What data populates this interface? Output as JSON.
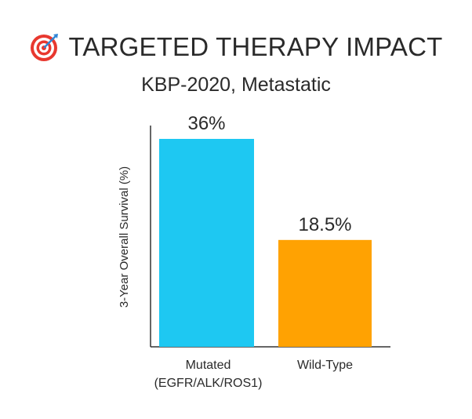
{
  "header": {
    "title": "TARGETED THERAPY IMPACT",
    "subtitle": "KBP-2020, Metastatic",
    "icon": "target-icon"
  },
  "colors": {
    "mutated": "#1ec8f2",
    "wild_type": "#ffa202",
    "axis": "#333333",
    "text": "#2a2a2a",
    "target_red": "#e8382f",
    "target_dart": "#2f86d6"
  },
  "chart_data": {
    "type": "bar",
    "title": "TARGETED THERAPY IMPACT",
    "subtitle": "KBP-2020, Metastatic",
    "categories": [
      [
        "Mutated",
        "(EGFR/ALK/ROS1)"
      ],
      [
        "Wild-Type"
      ]
    ],
    "values": [
      36,
      18.5
    ],
    "data_labels": [
      "36%",
      "18.5%"
    ],
    "ylabel": "3-Year Overall Survival (%)",
    "xlabel": "",
    "ylim": [
      0,
      40
    ],
    "grid": false,
    "legend": "none"
  }
}
